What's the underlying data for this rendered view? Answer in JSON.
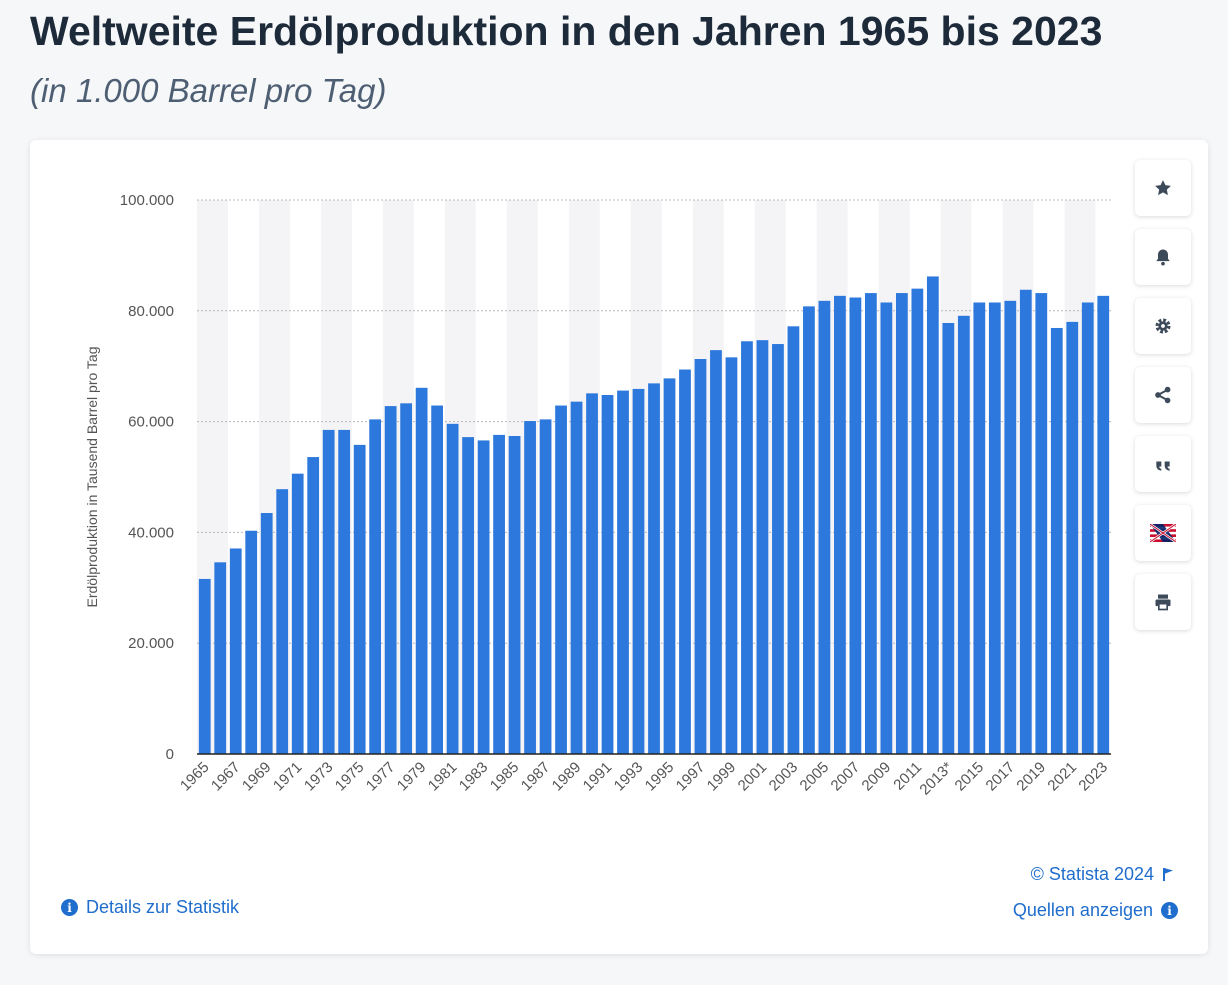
{
  "header": {
    "title": "Weltweite Erdölproduktion in den Jahren 1965 bis 2023",
    "subtitle": "(in 1.000 Barrel pro Tag)"
  },
  "toolbar": [
    {
      "name": "favorite-button",
      "icon": "star-icon"
    },
    {
      "name": "notification-button",
      "icon": "bell-icon"
    },
    {
      "name": "settings-button",
      "icon": "gear-icon"
    },
    {
      "name": "share-button",
      "icon": "share-icon"
    },
    {
      "name": "cite-button",
      "icon": "quote-icon"
    },
    {
      "name": "language-button",
      "icon": "flag-icon"
    },
    {
      "name": "print-button",
      "icon": "printer-icon"
    }
  ],
  "footer": {
    "details_label": "Details zur Statistik",
    "copyright_label": "© Statista 2024",
    "sources_label": "Quellen anzeigen"
  },
  "colors": {
    "bar": "#2d78dd",
    "stripe": "#f4f4f6",
    "link": "#1f6dcc"
  },
  "chart_data": {
    "type": "bar",
    "ylabel": "Erdölproduktion in Tausend Barrel pro Tag",
    "ylim": [
      0,
      100000
    ],
    "yticks": [
      0,
      20000,
      40000,
      60000,
      80000,
      100000
    ],
    "ytick_labels": [
      "0",
      "20.000",
      "40.000",
      "60.000",
      "80.000",
      "100.000"
    ],
    "grid": true,
    "categories": [
      "1965",
      "1966",
      "1967",
      "1968",
      "1969",
      "1970",
      "1971",
      "1972",
      "1973",
      "1974",
      "1975",
      "1976",
      "1977",
      "1978",
      "1979",
      "1980",
      "1981",
      "1982",
      "1983",
      "1984",
      "1985",
      "1986",
      "1987",
      "1988",
      "1989",
      "1990",
      "1991",
      "1992",
      "1993",
      "1994",
      "1995",
      "1996",
      "1997",
      "1998",
      "1999",
      "2000",
      "2001",
      "2002",
      "2003",
      "2004",
      "2005",
      "2006",
      "2007",
      "2008",
      "2009",
      "2010",
      "2011",
      "2012",
      "2013*",
      "2014",
      "2015",
      "2016",
      "2017",
      "2018",
      "2019",
      "2020",
      "2021",
      "2022",
      "2023"
    ],
    "values": [
      31600,
      34600,
      37100,
      40300,
      43500,
      47800,
      50600,
      53600,
      58500,
      58500,
      55800,
      60400,
      62800,
      63300,
      66100,
      62900,
      59600,
      57200,
      56600,
      57600,
      57400,
      60100,
      60400,
      62900,
      63600,
      65100,
      64800,
      65600,
      65900,
      66900,
      67800,
      69400,
      71300,
      72900,
      71600,
      74500,
      74700,
      74000,
      77200,
      80800,
      81800,
      82700,
      82400,
      83200,
      81500,
      83200,
      84000,
      86200,
      77800,
      79100,
      81500,
      81500,
      81800,
      83800,
      83200,
      76900,
      78000,
      81500,
      82700
    ],
    "xtick_labels": [
      "1965",
      "1967",
      "1969",
      "1971",
      "1973",
      "1975",
      "1977",
      "1979",
      "1981",
      "1983",
      "1985",
      "1987",
      "1989",
      "1991",
      "1993",
      "1995",
      "1997",
      "1999",
      "2001",
      "2003",
      "2005",
      "2007",
      "2009",
      "2011",
      "2013*",
      "2015",
      "2017",
      "2019",
      "2021",
      "2023"
    ]
  }
}
